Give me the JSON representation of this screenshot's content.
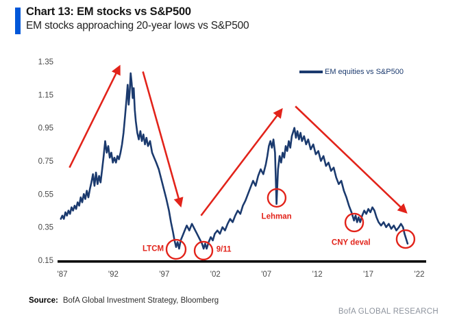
{
  "header": {
    "title": "Chart 13: EM stocks vs S&P500",
    "subtitle": "EM stocks approaching 20-year lows vs S&P500"
  },
  "legend": {
    "label": "EM equities vs S&P500"
  },
  "source": {
    "label": "Source:",
    "text": "BofA Global Investment Strategy, Bloomberg"
  },
  "footer": {
    "brand": "BofA GLOBAL RESEARCH"
  },
  "colors": {
    "accent_blue": "#0057d9",
    "series_navy": "#1b3a6e",
    "annotation_red": "#e2231a",
    "axis_black": "#0a0a0a",
    "tick_gray": "#474747",
    "brand_gray": "#8d939d"
  },
  "chart_data": {
    "type": "line",
    "title": "Chart 13: EM stocks vs S&P500",
    "subtitle": "EM stocks approaching 20-year lows vs S&P500",
    "ylim": [
      0.15,
      1.35
    ],
    "xlim": [
      1986.8,
      2023.3
    ],
    "grid": false,
    "legend_position": "top-right",
    "yticks": [
      1.35,
      1.15,
      0.95,
      0.75,
      0.55,
      0.35,
      0.15
    ],
    "xticks": [
      {
        "year": 1987,
        "label": "'87"
      },
      {
        "year": 1992,
        "label": "'92"
      },
      {
        "year": 1997,
        "label": "'97"
      },
      {
        "year": 2002,
        "label": "'02"
      },
      {
        "year": 2007,
        "label": "'07"
      },
      {
        "year": 2012,
        "label": "'12"
      },
      {
        "year": 2017,
        "label": "'17"
      },
      {
        "year": 2022,
        "label": "'22"
      }
    ],
    "series": [
      {
        "name": "EM equities vs S&P500",
        "points": [
          [
            1986.85,
            0.4
          ],
          [
            1987.0,
            0.42
          ],
          [
            1987.15,
            0.4
          ],
          [
            1987.3,
            0.44
          ],
          [
            1987.45,
            0.42
          ],
          [
            1987.6,
            0.45
          ],
          [
            1987.75,
            0.43
          ],
          [
            1987.9,
            0.47
          ],
          [
            1988.05,
            0.45
          ],
          [
            1988.2,
            0.48
          ],
          [
            1988.35,
            0.46
          ],
          [
            1988.5,
            0.5
          ],
          [
            1988.65,
            0.48
          ],
          [
            1988.8,
            0.53
          ],
          [
            1988.95,
            0.5
          ],
          [
            1989.1,
            0.55
          ],
          [
            1989.25,
            0.52
          ],
          [
            1989.4,
            0.57
          ],
          [
            1989.55,
            0.53
          ],
          [
            1989.7,
            0.58
          ],
          [
            1989.85,
            0.62
          ],
          [
            1990.0,
            0.67
          ],
          [
            1990.15,
            0.6
          ],
          [
            1990.3,
            0.68
          ],
          [
            1990.45,
            0.61
          ],
          [
            1990.6,
            0.66
          ],
          [
            1990.75,
            0.62
          ],
          [
            1990.9,
            0.7
          ],
          [
            1991.05,
            0.78
          ],
          [
            1991.2,
            0.87
          ],
          [
            1991.35,
            0.8
          ],
          [
            1991.5,
            0.84
          ],
          [
            1991.65,
            0.77
          ],
          [
            1991.8,
            0.8
          ],
          [
            1991.95,
            0.74
          ],
          [
            1992.1,
            0.77
          ],
          [
            1992.25,
            0.74
          ],
          [
            1992.4,
            0.78
          ],
          [
            1992.55,
            0.76
          ],
          [
            1992.7,
            0.8
          ],
          [
            1992.85,
            0.85
          ],
          [
            1993.0,
            0.92
          ],
          [
            1993.15,
            1.02
          ],
          [
            1993.3,
            1.13
          ],
          [
            1993.4,
            1.21
          ],
          [
            1993.5,
            1.09
          ],
          [
            1993.6,
            1.16
          ],
          [
            1993.7,
            1.28
          ],
          [
            1993.8,
            1.22
          ],
          [
            1993.9,
            1.13
          ],
          [
            1994.0,
            1.19
          ],
          [
            1994.1,
            1.06
          ],
          [
            1994.2,
            0.99
          ],
          [
            1994.35,
            0.92
          ],
          [
            1994.5,
            0.88
          ],
          [
            1994.65,
            0.93
          ],
          [
            1994.8,
            0.87
          ],
          [
            1994.95,
            0.91
          ],
          [
            1995.1,
            0.85
          ],
          [
            1995.25,
            0.89
          ],
          [
            1995.4,
            0.84
          ],
          [
            1995.6,
            0.87
          ],
          [
            1995.8,
            0.8
          ],
          [
            1996.0,
            0.77
          ],
          [
            1996.2,
            0.74
          ],
          [
            1996.45,
            0.7
          ],
          [
            1996.7,
            0.64
          ],
          [
            1996.95,
            0.58
          ],
          [
            1997.2,
            0.52
          ],
          [
            1997.45,
            0.45
          ],
          [
            1997.65,
            0.38
          ],
          [
            1997.85,
            0.32
          ],
          [
            1998.0,
            0.27
          ],
          [
            1998.15,
            0.23
          ],
          [
            1998.3,
            0.26
          ],
          [
            1998.45,
            0.22
          ],
          [
            1998.6,
            0.27
          ],
          [
            1998.8,
            0.3
          ],
          [
            1999.0,
            0.33
          ],
          [
            1999.2,
            0.36
          ],
          [
            1999.45,
            0.33
          ],
          [
            1999.7,
            0.37
          ],
          [
            1999.95,
            0.34
          ],
          [
            2000.2,
            0.31
          ],
          [
            2000.45,
            0.28
          ],
          [
            2000.7,
            0.25
          ],
          [
            2000.85,
            0.22
          ],
          [
            2001.0,
            0.25
          ],
          [
            2001.15,
            0.22
          ],
          [
            2001.35,
            0.26
          ],
          [
            2001.55,
            0.29
          ],
          [
            2001.75,
            0.27
          ],
          [
            2001.95,
            0.31
          ],
          [
            2002.2,
            0.33
          ],
          [
            2002.45,
            0.31
          ],
          [
            2002.7,
            0.35
          ],
          [
            2002.95,
            0.33
          ],
          [
            2003.2,
            0.37
          ],
          [
            2003.45,
            0.4
          ],
          [
            2003.7,
            0.38
          ],
          [
            2003.95,
            0.42
          ],
          [
            2004.2,
            0.45
          ],
          [
            2004.45,
            0.43
          ],
          [
            2004.7,
            0.48
          ],
          [
            2004.95,
            0.51
          ],
          [
            2005.2,
            0.55
          ],
          [
            2005.45,
            0.59
          ],
          [
            2005.7,
            0.63
          ],
          [
            2005.95,
            0.6
          ],
          [
            2006.2,
            0.66
          ],
          [
            2006.45,
            0.7
          ],
          [
            2006.7,
            0.67
          ],
          [
            2006.95,
            0.73
          ],
          [
            2007.1,
            0.78
          ],
          [
            2007.25,
            0.84
          ],
          [
            2007.4,
            0.87
          ],
          [
            2007.55,
            0.83
          ],
          [
            2007.7,
            0.88
          ],
          [
            2007.85,
            0.8
          ],
          [
            2008.0,
            0.49
          ],
          [
            2008.15,
            0.7
          ],
          [
            2008.3,
            0.78
          ],
          [
            2008.45,
            0.74
          ],
          [
            2008.6,
            0.8
          ],
          [
            2008.75,
            0.77
          ],
          [
            2008.9,
            0.84
          ],
          [
            2009.05,
            0.81
          ],
          [
            2009.2,
            0.87
          ],
          [
            2009.35,
            0.83
          ],
          [
            2009.5,
            0.9
          ],
          [
            2009.65,
            0.93
          ],
          [
            2009.75,
            0.95
          ],
          [
            2009.9,
            0.89
          ],
          [
            2010.05,
            0.93
          ],
          [
            2010.2,
            0.88
          ],
          [
            2010.35,
            0.92
          ],
          [
            2010.5,
            0.87
          ],
          [
            2010.7,
            0.9
          ],
          [
            2010.9,
            0.85
          ],
          [
            2011.1,
            0.88
          ],
          [
            2011.35,
            0.82
          ],
          [
            2011.6,
            0.85
          ],
          [
            2011.85,
            0.79
          ],
          [
            2012.1,
            0.81
          ],
          [
            2012.35,
            0.75
          ],
          [
            2012.6,
            0.78
          ],
          [
            2012.85,
            0.72
          ],
          [
            2013.1,
            0.74
          ],
          [
            2013.35,
            0.69
          ],
          [
            2013.6,
            0.71
          ],
          [
            2013.85,
            0.65
          ],
          [
            2014.1,
            0.61
          ],
          [
            2014.35,
            0.63
          ],
          [
            2014.6,
            0.57
          ],
          [
            2014.85,
            0.53
          ],
          [
            2015.1,
            0.48
          ],
          [
            2015.35,
            0.44
          ],
          [
            2015.6,
            0.39
          ],
          [
            2015.75,
            0.42
          ],
          [
            2015.9,
            0.38
          ],
          [
            2016.05,
            0.41
          ],
          [
            2016.2,
            0.38
          ],
          [
            2016.4,
            0.42
          ],
          [
            2016.6,
            0.45
          ],
          [
            2016.8,
            0.43
          ],
          [
            2017.0,
            0.46
          ],
          [
            2017.2,
            0.44
          ],
          [
            2017.4,
            0.47
          ],
          [
            2017.6,
            0.45
          ],
          [
            2017.8,
            0.41
          ],
          [
            2018.0,
            0.38
          ],
          [
            2018.25,
            0.36
          ],
          [
            2018.5,
            0.38
          ],
          [
            2018.75,
            0.35
          ],
          [
            2019.0,
            0.37
          ],
          [
            2019.25,
            0.34
          ],
          [
            2019.5,
            0.36
          ],
          [
            2019.75,
            0.33
          ],
          [
            2020.0,
            0.35
          ],
          [
            2020.2,
            0.37
          ],
          [
            2020.4,
            0.35
          ],
          [
            2020.55,
            0.31
          ],
          [
            2020.7,
            0.28
          ],
          [
            2020.85,
            0.25
          ]
        ]
      }
    ],
    "annotations": {
      "circles": [
        {
          "id": "ltcm",
          "year": 1998.15,
          "value": 0.216,
          "r": 14
        },
        {
          "id": "nine-eleven",
          "year": 2000.84,
          "value": 0.208,
          "r": 13
        },
        {
          "id": "lehman",
          "year": 2008.02,
          "value": 0.527,
          "r": 13
        },
        {
          "id": "cny-deval",
          "year": 2015.62,
          "value": 0.378,
          "r": 13
        },
        {
          "id": "current-low",
          "year": 2020.65,
          "value": 0.278,
          "r": 13
        }
      ],
      "labels": [
        {
          "id": "ltcm",
          "text": "LTCM",
          "year": 1996.95,
          "value": 0.205,
          "anchor": "end"
        },
        {
          "id": "nine-eleven",
          "text": "9/11",
          "year": 2002.1,
          "value": 0.202,
          "anchor": "start"
        },
        {
          "id": "lehman",
          "text": "Lehman",
          "year": 2008.0,
          "value": 0.4,
          "anchor": "middle"
        },
        {
          "id": "cny-deval",
          "text": "CNY deval",
          "year": 2015.3,
          "value": 0.243,
          "anchor": "middle"
        }
      ],
      "arrows": [
        {
          "id": "uptrend-1",
          "x1": 1987.7,
          "v1": 0.71,
          "x2": 1992.6,
          "v2": 1.32
        },
        {
          "id": "downtrend-1",
          "x1": 1994.9,
          "v1": 1.29,
          "x2": 1998.6,
          "v2": 0.48
        },
        {
          "id": "uptrend-2",
          "x1": 2000.6,
          "v1": 0.42,
          "x2": 2008.5,
          "v2": 1.06
        },
        {
          "id": "downtrend-2",
          "x1": 2009.85,
          "v1": 1.08,
          "x2": 2020.7,
          "v2": 0.44
        }
      ]
    }
  }
}
